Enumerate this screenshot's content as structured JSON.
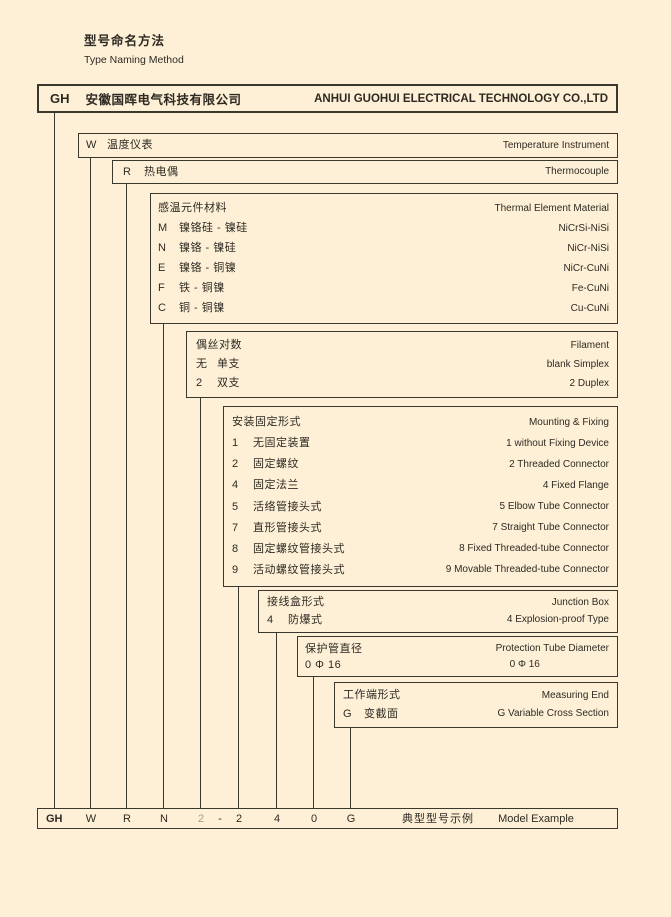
{
  "colors": {
    "background": "#fdf0d6",
    "line": "#3a372f",
    "text": "#2e2a23",
    "faded_code": "#a59c8b"
  },
  "page": {
    "title_zh": "型号命名方法",
    "title_en": "Type Naming Method"
  },
  "header": {
    "code": "GH",
    "company_zh": "安徽国晖电气科技有限公司",
    "company_en": "ANHUI GUOHUI ELECTRICAL TECHNOLOGY CO.,LTD"
  },
  "levels": {
    "w": {
      "code": "W",
      "zh": "温度仪表",
      "en": "Temperature Instrument"
    },
    "r": {
      "code": "R",
      "zh": "热电偶",
      "en": "Thermocouple"
    },
    "material": {
      "title_zh": "感温元件材料",
      "title_en": "Thermal Element Material",
      "items": [
        {
          "code": "M",
          "zh": "镍铬硅 - 镍硅",
          "en": "NiCrSi-NiSi"
        },
        {
          "code": "N",
          "zh": "镍铬 - 镍硅",
          "en": "NiCr-NiSi"
        },
        {
          "code": "E",
          "zh": "镍铬 - 铜镍",
          "en": "NiCr-CuNi"
        },
        {
          "code": "F",
          "zh": "铁 - 铜镍",
          "en": "Fe-CuNi"
        },
        {
          "code": "C",
          "zh": "铜 - 铜镍",
          "en": "Cu-CuNi"
        }
      ]
    },
    "filament": {
      "title_zh": "偶丝对数",
      "title_en": "Filament",
      "items": [
        {
          "code": "无",
          "zh": "单支",
          "en": "blank Simplex"
        },
        {
          "code": "2",
          "zh": "双支",
          "en": "2 Duplex"
        }
      ]
    },
    "mounting": {
      "title_zh": "安装固定形式",
      "title_en": "Mounting & Fixing",
      "items": [
        {
          "code": "1",
          "zh": "无固定装置",
          "en": "1 without Fixing Device"
        },
        {
          "code": "2",
          "zh": "固定螺纹",
          "en": "2 Threaded Connector"
        },
        {
          "code": "4",
          "zh": "固定法兰",
          "en": "4 Fixed Flange"
        },
        {
          "code": "5",
          "zh": "活络管接头式",
          "en": "5 Elbow Tube Connector"
        },
        {
          "code": "7",
          "zh": "直形管接头式",
          "en": "7 Straight Tube Connector"
        },
        {
          "code": "8",
          "zh": "固定螺纹管接头式",
          "en": "8 Fixed Threaded-tube Connector"
        },
        {
          "code": "9",
          "zh": "活动螺纹管接头式",
          "en": "9 Movable Threaded-tube Connector"
        }
      ]
    },
    "junction": {
      "title_zh": "接线盒形式",
      "title_en": "Junction Box",
      "items": [
        {
          "code": "4",
          "zh": "防爆式",
          "en": "4 Explosion-proof Type"
        }
      ]
    },
    "protection": {
      "title_zh": "保护管直径",
      "value_zh": "0   Φ 16",
      "title_en": "Protection Tube Diameter",
      "value_en": "0   Φ 16"
    },
    "measuring": {
      "title_zh": "工作端形式",
      "title_en": "Measuring End",
      "items": [
        {
          "code": "G",
          "zh": "变截面",
          "en": "G Variable Cross Section"
        }
      ]
    }
  },
  "model_example": {
    "codes": [
      "GH",
      "W",
      "R",
      "N",
      "2",
      "-",
      "2",
      "4",
      "0",
      "G"
    ],
    "label_zh": "典型型号示例",
    "label_en": "Model Example"
  }
}
